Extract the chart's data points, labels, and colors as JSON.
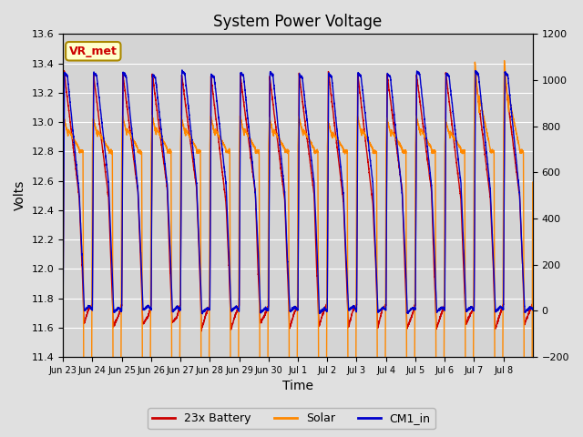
{
  "title": "System Power Voltage",
  "xlabel": "Time",
  "ylabel_left": "Volts",
  "ylim_left": [
    11.4,
    13.6
  ],
  "ylim_right": [
    -200,
    1200
  ],
  "yticks_left": [
    11.4,
    11.6,
    11.8,
    12.0,
    12.2,
    12.4,
    12.6,
    12.8,
    13.0,
    13.2,
    13.4,
    13.6
  ],
  "yticks_right": [
    -200,
    0,
    200,
    400,
    600,
    800,
    1000,
    1200
  ],
  "bg_color": "#e0e0e0",
  "plot_bg_color": "#d4d4d4",
  "grid_color": "#ffffff",
  "legend_labels": [
    "23x Battery",
    "Solar",
    "CM1_in"
  ],
  "legend_colors": [
    "#cc0000",
    "#ff8800",
    "#0000cc"
  ],
  "annotation_text": "VR_met",
  "annotation_bg": "#ffffcc",
  "annotation_border": "#aa8800",
  "annotation_text_color": "#cc0000",
  "n_cycles": 16,
  "xtick_labels": [
    "Jun 23",
    "Jun 24",
    "Jun 25",
    "Jun 26",
    "Jun 27",
    "Jun 28",
    "Jun 29",
    "Jun 30",
    "Jul 1",
    "Jul 2",
    "Jul 3",
    "Jul 4",
    "Jul 5",
    "Jul 6",
    "Jul 7",
    "Jul 8"
  ],
  "battery_base": 11.75,
  "battery_min": 11.58,
  "battery_peak": 13.35,
  "solar_base": 12.82,
  "solar_peak": 13.05,
  "solar_spike_last2": 13.45,
  "cm1_base": 11.72,
  "cm1_peak": 13.35
}
